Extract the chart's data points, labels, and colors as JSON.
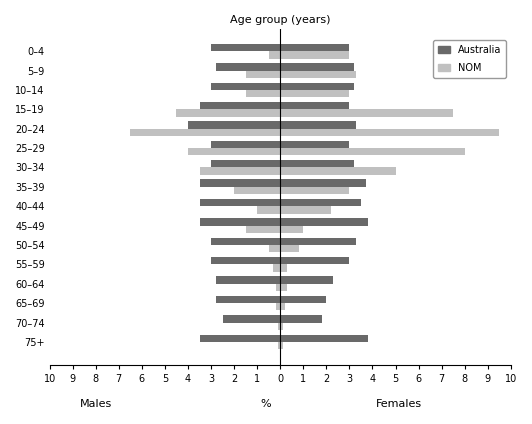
{
  "age_groups": [
    "75+",
    "70–74",
    "65–69",
    "60–64",
    "55–59",
    "50–54",
    "45–49",
    "40–44",
    "35–39",
    "30–34",
    "25–29",
    "20–24",
    "15–19",
    "10–14",
    "5–9",
    "0–4"
  ],
  "males_australia": [
    3.5,
    2.5,
    2.8,
    2.8,
    3.0,
    3.0,
    3.5,
    3.5,
    3.5,
    3.0,
    3.0,
    4.0,
    3.5,
    3.0,
    2.8,
    3.0
  ],
  "males_nom": [
    0.1,
    0.1,
    0.2,
    0.2,
    0.3,
    0.5,
    1.5,
    1.0,
    2.0,
    3.5,
    4.0,
    6.5,
    4.5,
    1.5,
    1.5,
    0.5
  ],
  "females_australia": [
    3.8,
    1.8,
    2.0,
    2.3,
    3.0,
    3.3,
    3.8,
    3.5,
    3.7,
    3.2,
    3.0,
    3.3,
    3.0,
    3.2,
    3.2,
    3.0
  ],
  "females_nom": [
    0.1,
    0.1,
    0.2,
    0.3,
    0.3,
    0.8,
    1.0,
    2.2,
    3.0,
    5.0,
    8.0,
    9.5,
    7.5,
    3.0,
    3.3,
    3.0
  ],
  "color_australia": "#696969",
  "color_nom": "#c0c0c0",
  "xlim": 10,
  "xlabel_left": "Males",
  "xlabel_right": "Females",
  "xlabel_center": "%",
  "ylabel": "Age group (years)",
  "legend_australia": "Australia",
  "legend_nom": "NOM",
  "title": "Age group (years)"
}
